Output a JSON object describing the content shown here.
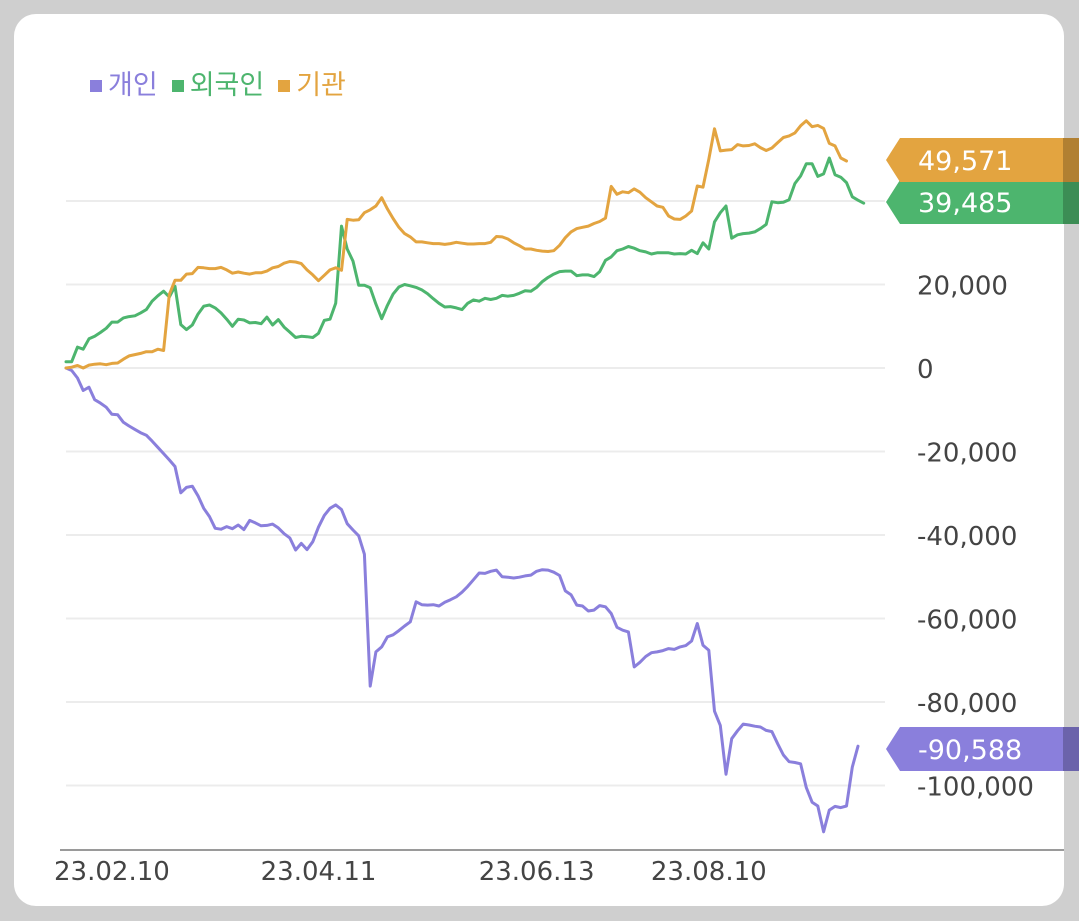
{
  "chart_data": {
    "type": "line",
    "title": "",
    "xlabel": "",
    "ylabel": "",
    "ylim": [
      -112000,
      62000
    ],
    "x_ticks": [
      {
        "label": "23.02.10",
        "index": 8
      },
      {
        "label": "23.04.11",
        "index": 44
      },
      {
        "label": "23.06.13",
        "index": 82
      },
      {
        "label": "23.08.10",
        "index": 112
      }
    ],
    "y_ticks": [
      {
        "value": 20000,
        "label": "20,000"
      },
      {
        "value": 0,
        "label": "0"
      },
      {
        "value": -20000,
        "label": "-20,000"
      },
      {
        "value": -40000,
        "label": "-40,000"
      },
      {
        "value": -60000,
        "label": "-60,000"
      },
      {
        "value": -80000,
        "label": "-80,000"
      },
      {
        "value": -100000,
        "label": "-100,000"
      }
    ],
    "grid": true,
    "legend_position": "top-left",
    "series": [
      {
        "name": "개인",
        "color": "#8a7fdc",
        "last_label": "-90,588",
        "values": [
          0,
          -600,
          -2400,
          -5400,
          -4600,
          -7600,
          -8400,
          -9400,
          -11100,
          -11200,
          -13000,
          -13900,
          -14700,
          -15500,
          -16100,
          -17500,
          -19000,
          -20500,
          -22000,
          -23600,
          -29900,
          -28600,
          -28300,
          -30600,
          -33600,
          -35600,
          -38400,
          -38600,
          -38000,
          -38500,
          -37600,
          -38700,
          -36500,
          -37100,
          -37800,
          -37700,
          -37400,
          -38300,
          -39700,
          -40700,
          -43600,
          -42000,
          -43500,
          -41600,
          -38100,
          -35300,
          -33600,
          -32800,
          -33900,
          -37300,
          -38800,
          -40200,
          -44600,
          -76200,
          -68000,
          -66800,
          -64400,
          -63900,
          -62900,
          -61800,
          -60800,
          -56000,
          -56700,
          -56800,
          -56700,
          -57000,
          -56100,
          -55500,
          -54800,
          -53700,
          -52300,
          -50700,
          -49100,
          -49200,
          -48700,
          -48400,
          -50000,
          -50100,
          -50300,
          -50100,
          -49800,
          -49600,
          -48700,
          -48300,
          -48400,
          -48900,
          -49700,
          -53400,
          -54300,
          -56800,
          -57000,
          -58200,
          -58000,
          -56900,
          -57200,
          -58800,
          -62100,
          -62800,
          -63200,
          -71600,
          -70500,
          -69100,
          -68200,
          -68000,
          -67700,
          -67200,
          -67400,
          -66800,
          -66500,
          -65400,
          -61200,
          -66400,
          -67600,
          -82200,
          -85600,
          -97300,
          -88800,
          -86900,
          -85300,
          -85500,
          -85800,
          -86000,
          -86800,
          -87100,
          -90000,
          -92700,
          -94300,
          -94500,
          -94800,
          -100500,
          -104000,
          -104900,
          -111100,
          -105900,
          -105000,
          -105300,
          -104900,
          -95600,
          -90588
        ]
      },
      {
        "name": "외국인",
        "color": "#4db56e",
        "last_label": "39,485",
        "values": [
          1500,
          1500,
          5000,
          4500,
          7000,
          7600,
          8500,
          9500,
          11000,
          11000,
          12000,
          12300,
          12500,
          13200,
          14000,
          16000,
          17300,
          18400,
          17000,
          19600,
          10400,
          9200,
          10300,
          12900,
          14800,
          15100,
          14400,
          13200,
          11700,
          10000,
          11700,
          11500,
          10800,
          10900,
          10600,
          12200,
          10300,
          11600,
          9800,
          8600,
          7300,
          7600,
          7500,
          7300,
          8300,
          11400,
          11700,
          15500,
          34000,
          28500,
          25600,
          19800,
          19800,
          19200,
          15300,
          11800,
          15000,
          17700,
          19400,
          20000,
          19700,
          19300,
          18700,
          17800,
          16600,
          15500,
          14600,
          14700,
          14400,
          14000,
          15500,
          16300,
          16000,
          16700,
          16400,
          16700,
          17400,
          17200,
          17400,
          17900,
          18500,
          18400,
          19300,
          20700,
          21700,
          22500,
          23100,
          23200,
          23200,
          22100,
          22300,
          22300,
          21900,
          23100,
          25800,
          26600,
          28100,
          28500,
          29100,
          28700,
          28100,
          27800,
          27300,
          27600,
          27600,
          27600,
          27300,
          27400,
          27300,
          28200,
          27400,
          30000,
          28500,
          35000,
          37200,
          38800,
          31100,
          31900,
          32200,
          32300,
          32600,
          33400,
          34400,
          39800,
          39600,
          39700,
          40300,
          44200,
          46000,
          48900,
          48900,
          45900,
          46500,
          50300,
          46300,
          45700,
          44400,
          41000,
          40200,
          39485
        ]
      },
      {
        "name": "기관",
        "color": "#e3a440",
        "last_label": "49,571",
        "values": [
          0,
          200,
          600,
          0,
          700,
          900,
          1000,
          800,
          1100,
          1200,
          2100,
          2900,
          3200,
          3500,
          3900,
          3900,
          4500,
          4200,
          17600,
          21000,
          21000,
          22500,
          22600,
          24100,
          24000,
          23800,
          23800,
          24100,
          23500,
          22700,
          23000,
          22700,
          22500,
          22800,
          22800,
          23200,
          24000,
          24300,
          25100,
          25500,
          25400,
          25000,
          23500,
          22300,
          20900,
          22200,
          23500,
          24000,
          23400,
          35600,
          35400,
          35500,
          37200,
          37900,
          38800,
          40800,
          38100,
          35800,
          33700,
          32200,
          31400,
          30200,
          30200,
          30000,
          29800,
          29800,
          29600,
          29800,
          30100,
          29900,
          29700,
          29700,
          29800,
          29800,
          30100,
          31500,
          31400,
          30900,
          30000,
          29300,
          28500,
          28500,
          28200,
          28000,
          27900,
          28100,
          29400,
          31200,
          32600,
          33400,
          33700,
          34000,
          34600,
          35100,
          35900,
          43500,
          41600,
          42200,
          42000,
          42900,
          42100,
          40800,
          39800,
          38800,
          38500,
          36400,
          35700,
          35600,
          36400,
          37600,
          43600,
          43300,
          50000,
          57300,
          52000,
          52200,
          52300,
          53500,
          53200,
          53300,
          53700,
          52800,
          52100,
          52700,
          54000,
          55200,
          55600,
          56300,
          58000,
          59200,
          57800,
          58100,
          57400,
          53800,
          53200,
          50300,
          49571
        ]
      }
    ]
  }
}
